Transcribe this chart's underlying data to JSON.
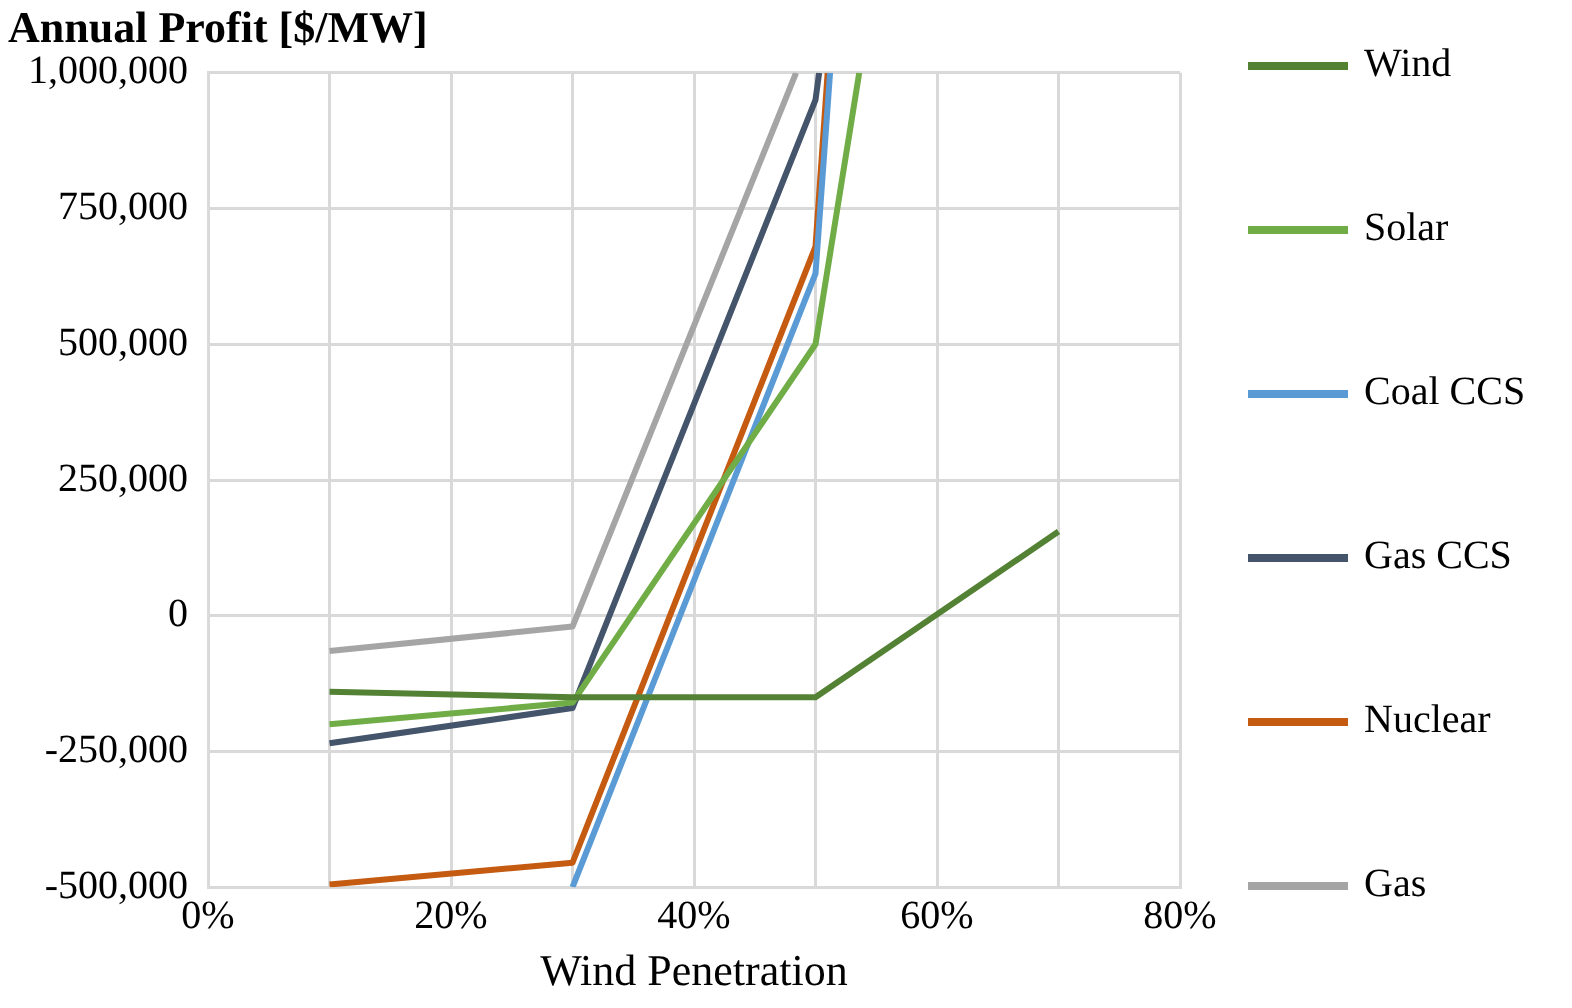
{
  "chart_data": {
    "type": "line",
    "title": "Annual Profit [$/MW]",
    "xlabel": "Wind Penetration",
    "xlim": [
      0,
      80
    ],
    "xticks": [
      {
        "value": 0,
        "label": "0%"
      },
      {
        "value": 10,
        "label": null
      },
      {
        "value": 20,
        "label": "20%"
      },
      {
        "value": 30,
        "label": null
      },
      {
        "value": 40,
        "label": "40%"
      },
      {
        "value": 50,
        "label": null
      },
      {
        "value": 60,
        "label": "60%"
      },
      {
        "value": 70,
        "label": null
      },
      {
        "value": 80,
        "label": "80%"
      }
    ],
    "ylim": [
      -500000,
      1000000
    ],
    "yticks": [
      {
        "value": -500000,
        "label": "-500,000"
      },
      {
        "value": -250000,
        "label": "-250,000"
      },
      {
        "value": 0,
        "label": "0"
      },
      {
        "value": 250000,
        "label": "250,000"
      },
      {
        "value": 500000,
        "label": "500,000"
      },
      {
        "value": 750000,
        "label": "750,000"
      },
      {
        "value": 1000000,
        "label": "1,000,000"
      }
    ],
    "grid": true,
    "legend": "right",
    "marker": "none",
    "line_style": "solid",
    "series": [
      {
        "name": "Wind",
        "color": "#548235",
        "x": [
          10,
          30,
          50,
          70
        ],
        "values": [
          -140000,
          -150000,
          -150000,
          155000
        ]
      },
      {
        "name": "Solar",
        "color": "#70ad47",
        "x": [
          10,
          30,
          50,
          53.6
        ],
        "values": [
          -200000,
          -160000,
          500000,
          1000000
        ]
      },
      {
        "name": "Coal CCS",
        "color": "#5b9bd5",
        "x": [
          30,
          50,
          51.2
        ],
        "values": [
          -500000,
          630000,
          1000000
        ]
      },
      {
        "name": "Gas CCS",
        "color": "#44546a",
        "x": [
          10,
          30,
          50,
          50.3
        ],
        "values": [
          -235000,
          -170000,
          950000,
          1000000
        ]
      },
      {
        "name": "Nuclear",
        "color": "#c55a11",
        "x": [
          10,
          30,
          50,
          51
        ],
        "values": [
          -495000,
          -455000,
          680000,
          1000000
        ]
      },
      {
        "name": "Gas",
        "color": "#a5a5a5",
        "x": [
          10,
          30,
          48.4
        ],
        "values": [
          -65000,
          -20000,
          1000000
        ]
      }
    ]
  }
}
